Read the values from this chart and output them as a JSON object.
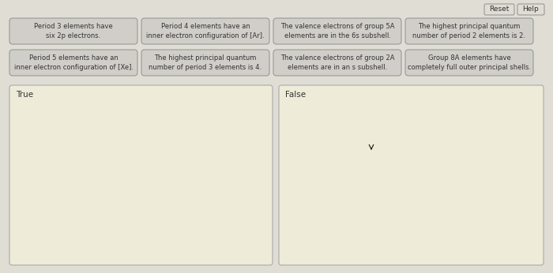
{
  "background_color": "#c8c8c8",
  "panel_bg": "#e0ddd5",
  "button_bg": "#d0cec8",
  "button_border": "#999999",
  "button_text_color": "#333333",
  "box_bg": "#eeebd8",
  "box_border": "#aaaaaa",
  "reset_help_bg": "#e0ddd5",
  "reset_help_border": "#999999",
  "buttons_row1": [
    "Period 3 elements have\nsix 2p electrons.",
    "Period 4 elements have an\ninner electron configuration of [Ar].",
    "The valence electrons of group 5A\nelements are in the 6s subshell.",
    "The highest principal quantum\nnumber of period 2 elements is 2."
  ],
  "buttons_row2": [
    "Period 5 elements have an\ninner electron configuration of [Xe].",
    "The highest principal quantum\nnumber of period 3 elements is 4.",
    "The valence electrons of group 2A\nelements are in an s subshell.",
    "Group 8A elements have\ncompletely full outer principal shells."
  ],
  "drop_zone_labels": [
    "True",
    "False"
  ],
  "button_fontsize": 6.0,
  "label_fontsize": 7.5,
  "reset_help_fontsize": 6.5
}
